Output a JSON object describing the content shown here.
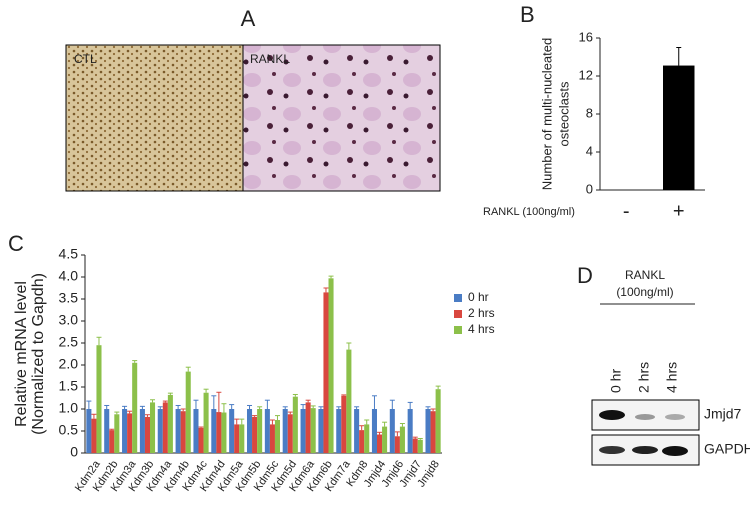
{
  "panel_labels": [
    "A",
    "B",
    "C",
    "D"
  ],
  "images": {
    "labels": [
      "CTL",
      "RANKL"
    ]
  },
  "blot": {
    "treatment": [
      "RANKL",
      "(100ng/ml)"
    ],
    "lanes": [
      "0 hr",
      "2 hrs",
      "4 hrs"
    ],
    "bands": [
      "Jmjd7",
      "GAPDH"
    ]
  },
  "chart_data": [
    {
      "type": "bar",
      "ylabel": [
        "Number of multi-nucleated",
        "osteoclasts"
      ],
      "xlabel": "RANKL (100ng/ml)",
      "categories": [
        "-",
        "+"
      ],
      "values": [
        0,
        13.1
      ],
      "errors": [
        null,
        1.9
      ],
      "color": "#000000",
      "ylim": [
        0,
        16
      ],
      "yticks": [
        0,
        4,
        8,
        12,
        16
      ]
    },
    {
      "type": "bar",
      "ylabel": [
        "Relative mRNA level",
        "(Normalized to Gapdh)"
      ],
      "categories": [
        "Kdm2a",
        "Kdm2b",
        "Kdm3a",
        "Kdm3b",
        "Kdm4a",
        "Kdm4b",
        "Kdm4c",
        "Kdm4d",
        "Kdm5a",
        "Kdm5b",
        "Kdm5c",
        "Kdm5d",
        "Kdm6a",
        "Kdm6b",
        "Kdm7a",
        "Kdm8",
        "Jmjd4",
        "Jmjd6",
        "Jmjd7",
        "Jmjd8"
      ],
      "series": [
        {
          "name": "0 hr",
          "color": "#4a7cc4",
          "values": [
            1.0,
            1.0,
            1.0,
            1.0,
            1.0,
            1.0,
            1.0,
            1.0,
            1.0,
            1.0,
            1.0,
            1.0,
            1.0,
            1.0,
            1.0,
            1.0,
            1.0,
            1.0,
            1.0,
            1.0
          ],
          "errors": [
            0.18,
            0.08,
            0.06,
            0.06,
            0.05,
            0.08,
            0.2,
            0.3,
            0.1,
            0.08,
            0.2,
            0.05,
            0.1,
            0.05,
            0.05,
            0.05,
            0.3,
            0.2,
            0.15,
            0.05
          ]
        },
        {
          "name": "2 hrs",
          "color": "#d9473f",
          "values": [
            0.78,
            0.52,
            0.9,
            0.82,
            1.15,
            0.95,
            0.57,
            0.93,
            0.65,
            0.82,
            0.65,
            0.88,
            1.15,
            3.65,
            1.3,
            0.52,
            0.42,
            0.38,
            0.33,
            0.95
          ],
          "errors": [
            0.1,
            0.02,
            0.05,
            0.05,
            0.03,
            0.05,
            0.02,
            0.45,
            0.12,
            0.03,
            0.1,
            0.05,
            0.05,
            0.1,
            0.02,
            0.1,
            0.05,
            0.1,
            0.03,
            0.05
          ]
        },
        {
          "name": "4 hrs",
          "color": "#8cc04a",
          "values": [
            2.45,
            0.88,
            2.05,
            1.15,
            1.32,
            1.85,
            1.37,
            0.92,
            0.65,
            1.0,
            0.75,
            1.28,
            1.02,
            3.97,
            2.35,
            0.65,
            0.6,
            0.6,
            0.3,
            1.45
          ],
          "errors": [
            0.18,
            0.05,
            0.05,
            0.06,
            0.04,
            0.1,
            0.08,
            0.2,
            0.12,
            0.05,
            0.1,
            0.05,
            0.05,
            0.05,
            0.15,
            0.1,
            0.1,
            0.07,
            0.03,
            0.07
          ]
        }
      ],
      "ylim": [
        0,
        4.5
      ],
      "yticks": [
        0,
        0.5,
        {
          "value": 1,
          "label": "1.0"
        },
        {
          "value": 1.5,
          "label": "1.5"
        },
        {
          "value": 2,
          "label": "2.0"
        },
        2.5,
        {
          "value": 3,
          "label": "3.0"
        },
        3.5,
        {
          "value": 4,
          "label": "4.0"
        },
        4.5
      ],
      "legend": "upper right"
    }
  ]
}
